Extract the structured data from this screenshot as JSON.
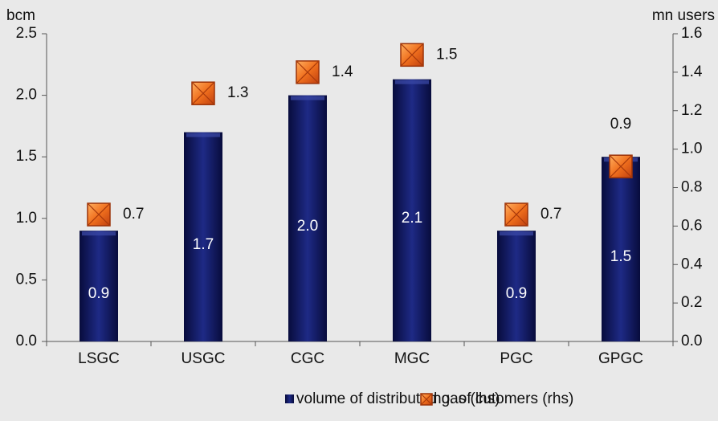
{
  "chart_data": {
    "type": "bar",
    "y_label": "bcm",
    "y2_label": "mn users",
    "categories": [
      "LSGC",
      "USGC",
      "CGC",
      "MGC",
      "PGC",
      "GPGC"
    ],
    "series": [
      {
        "name": "volume of distributed gas (lhs)",
        "type": "bar",
        "color": "#1a2378",
        "values": [
          0.9,
          1.7,
          2.0,
          2.13,
          0.9,
          1.5
        ],
        "value_labels": [
          "0.9",
          "1.7",
          "2.0",
          "2.1",
          "0.9",
          "1.5"
        ]
      },
      {
        "name": "no. of cutomers (rhs)",
        "type": "scatter",
        "axis": "y2",
        "color": "#f0701e",
        "values": [
          0.66,
          1.29,
          1.4,
          1.49,
          0.66,
          0.91
        ],
        "value_labels": [
          "0.7",
          "1.3",
          "1.4",
          "1.5",
          "0.7",
          "0.9"
        ]
      }
    ],
    "ylim": [
      0,
      2.5
    ],
    "yticks": [
      {
        "value": 0,
        "label": "0.0"
      },
      0.5,
      {
        "value": 1,
        "label": "1.0"
      },
      1.5,
      {
        "value": 2,
        "label": "2.0"
      },
      2.5
    ],
    "y2lim": [
      0,
      1.6
    ],
    "y2ticks": [
      {
        "value": 0,
        "label": "0.0"
      },
      0.2,
      0.4,
      0.6,
      0.8,
      {
        "value": 1,
        "label": "1.0"
      },
      1.2,
      1.4,
      1.6
    ],
    "legend": "bottom"
  }
}
